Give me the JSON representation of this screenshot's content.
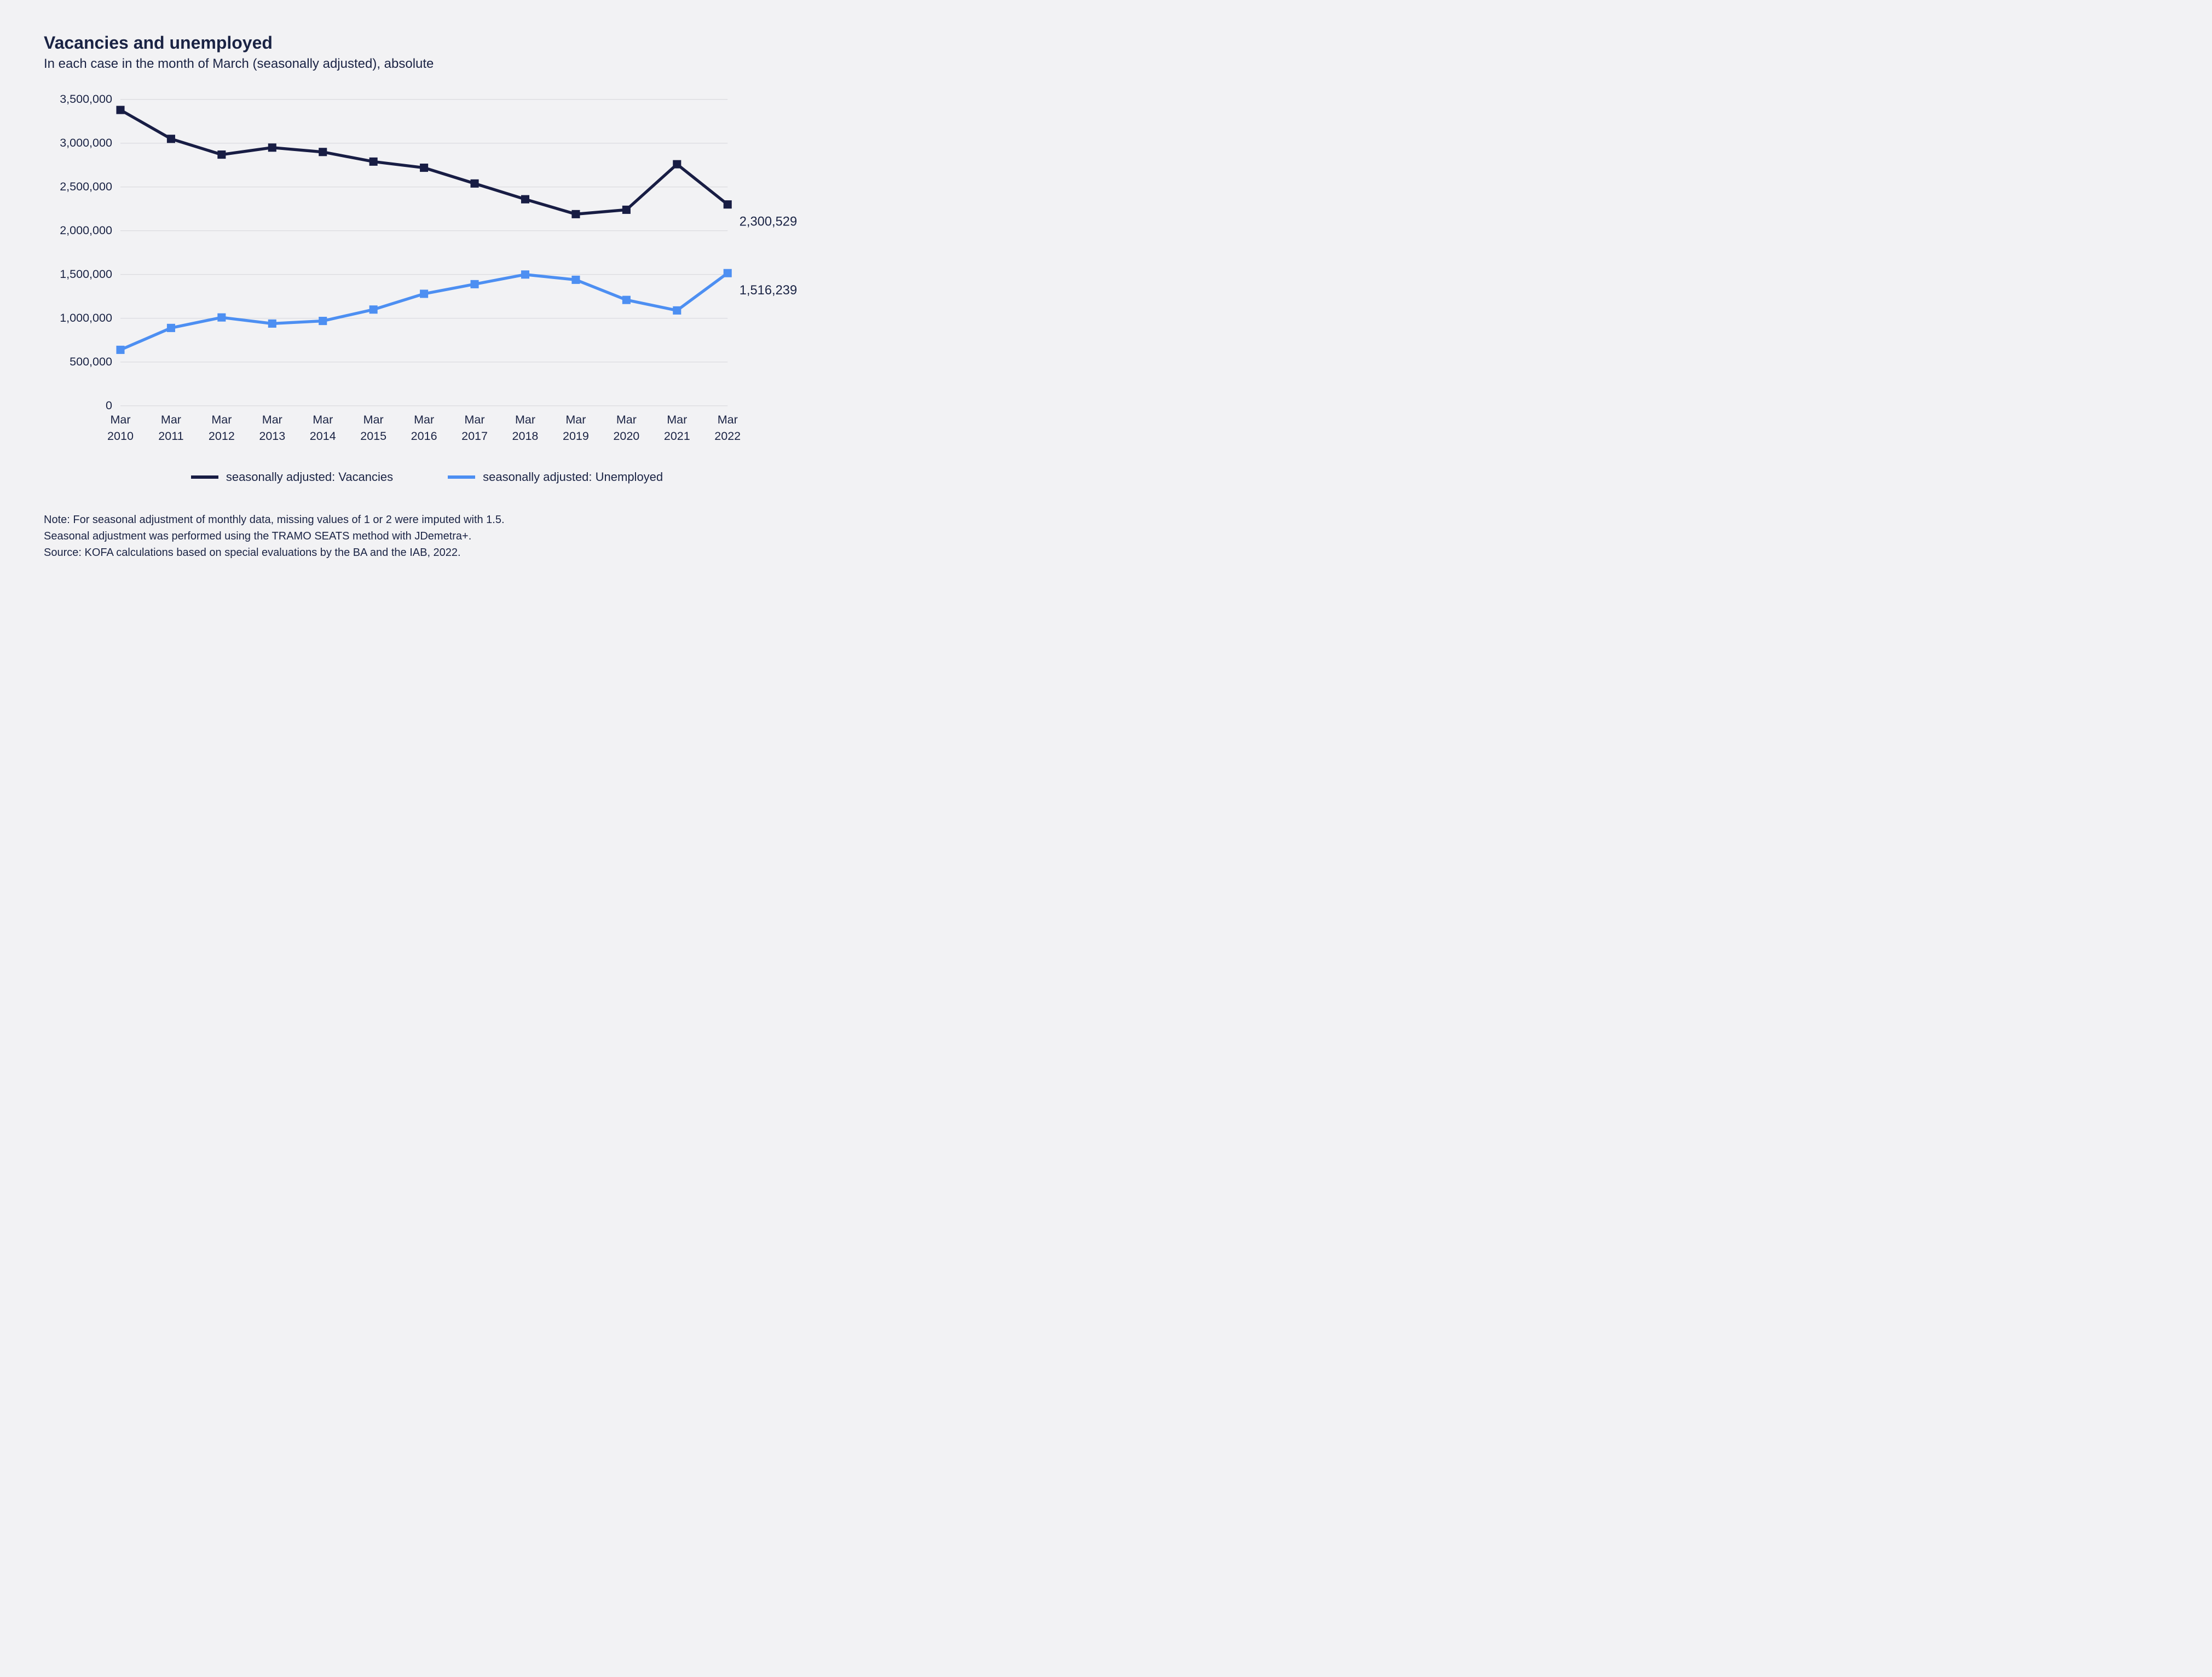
{
  "header": {
    "title": "Vacancies and unemployed",
    "subtitle": "In each case in the month of March (seasonally adjusted), absolute"
  },
  "chart": {
    "type": "line",
    "background_color": "#f2f2f4",
    "grid_color": "#d5d5da",
    "axis_text_color": "#1a2344",
    "ylim": [
      0,
      3500000
    ],
    "ytick_step": 500000,
    "ytick_labels": [
      "0",
      "500,000",
      "1,000,000",
      "1,500,000",
      "2,000,000",
      "2,500,000",
      "3,000,000",
      "3,500,000"
    ],
    "categories": [
      "Mar 2010",
      "Mar 2011",
      "Mar 2012",
      "Mar 2013",
      "Mar 2014",
      "Mar 2015",
      "Mar 2016",
      "Mar 2017",
      "Mar 2018",
      "Mar 2019",
      "Mar 2020",
      "Mar 2021",
      "Mar 2022"
    ],
    "xtick_line1": [
      "Mar",
      "Mar",
      "Mar",
      "Mar",
      "Mar",
      "Mar",
      "Mar",
      "Mar",
      "Mar",
      "Mar",
      "Mar",
      "Mar",
      "Mar"
    ],
    "xtick_line2": [
      "2010",
      "2011",
      "2012",
      "2013",
      "2014",
      "2015",
      "2016",
      "2017",
      "2018",
      "2019",
      "2020",
      "2021",
      "2022"
    ],
    "series": [
      {
        "name": "seasonally adjusted: Vacancies",
        "color": "#181d44",
        "line_width": 5,
        "marker": "square",
        "marker_size": 14,
        "values": [
          3380000,
          3050000,
          2870000,
          2950000,
          2900000,
          2790000,
          2720000,
          2540000,
          2360000,
          2190000,
          2240000,
          2760000,
          2300529
        ],
        "end_label": "2,300,529"
      },
      {
        "name": "seasonally adjusted: Unemployed",
        "color": "#4d8ff2",
        "line_width": 5,
        "marker": "square",
        "marker_size": 14,
        "values": [
          640000,
          890000,
          1010000,
          940000,
          970000,
          1100000,
          1280000,
          1390000,
          1500000,
          1440000,
          1210000,
          1090000,
          1516239
        ],
        "end_label": "1,516,239"
      }
    ],
    "legend": {
      "items": [
        {
          "label": "seasonally adjusted: Vacancies",
          "color": "#181d44"
        },
        {
          "label": "seasonally adjusted: Unemployed",
          "color": "#4d8ff2"
        }
      ]
    },
    "tick_fontsize": 20,
    "label_fontsize": 22
  },
  "footer": {
    "note_line1": "Note: For seasonal adjustment of monthly data, missing values of 1 or 2 were imputed with 1.5.",
    "note_line2": "Seasonal adjustment was performed using the TRAMO SEATS method with JDemetra+.",
    "note_line3": "Source: KOFA calculations based on special evaluations by the BA and the IAB, 2022."
  }
}
